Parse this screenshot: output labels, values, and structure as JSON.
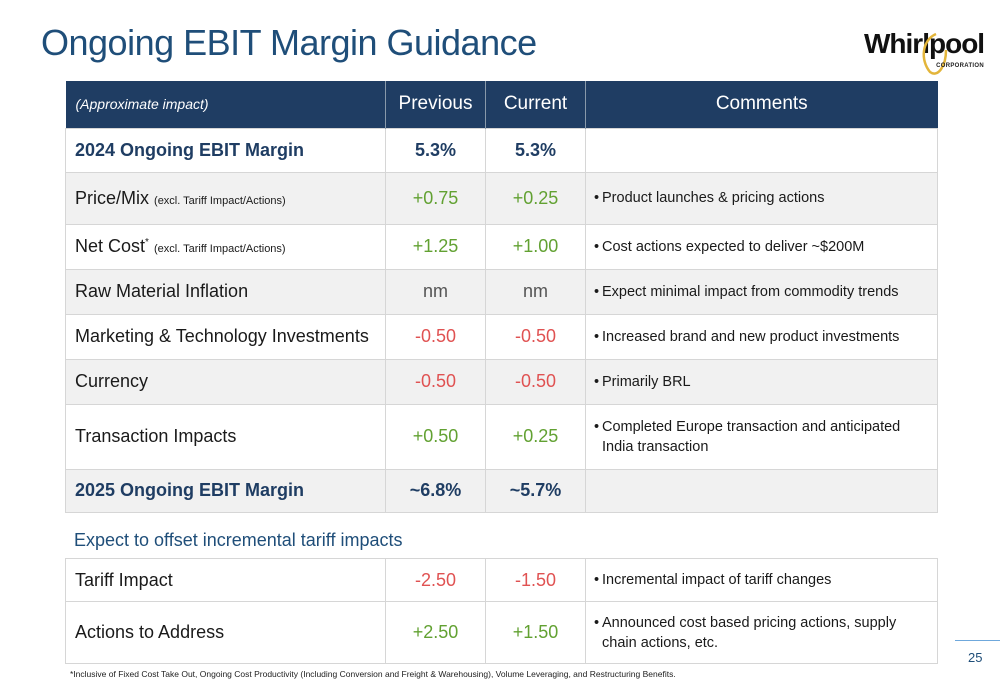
{
  "title": "Ongoing EBIT Margin Guidance",
  "logo": {
    "word": "Whirlpool",
    "sub": "CORPORATION"
  },
  "header": {
    "first": "(Approximate impact)",
    "previous": "Previous",
    "current": "Current",
    "comments": "Comments"
  },
  "rows": [
    {
      "label": "2024 Ongoing EBIT Margin",
      "note": "",
      "sup": "",
      "previous": "5.3%",
      "current": "5.3%",
      "comment": []
    },
    {
      "label": "Price/Mix",
      "note": "(excl. Tariff Impact/Actions)",
      "sup": "",
      "previous": "+0.75",
      "current": "+0.25",
      "comment": [
        "Product launches & pricing actions"
      ]
    },
    {
      "label": "Net Cost",
      "note": "(excl. Tariff Impact/Actions)",
      "sup": "*",
      "previous": "+1.25",
      "current": "+1.00",
      "comment": [
        "Cost actions expected to deliver ~$200M"
      ]
    },
    {
      "label": "Raw Material Inflation",
      "note": "",
      "sup": "",
      "previous": "nm",
      "current": "nm",
      "comment": [
        "Expect minimal impact from commodity trends"
      ]
    },
    {
      "label": "Marketing & Technology Investments",
      "note": "",
      "sup": "",
      "previous": "-0.50",
      "current": "-0.50",
      "comment": [
        "Increased brand and new product investments"
      ]
    },
    {
      "label": "Currency",
      "note": "",
      "sup": "",
      "previous": "-0.50",
      "current": "-0.50",
      "comment": [
        "Primarily BRL"
      ]
    },
    {
      "label": "Transaction Impacts",
      "note": "",
      "sup": "",
      "previous": "+0.50",
      "current": "+0.25",
      "comment": [
        "Completed Europe transaction and anticipated",
        "India transaction"
      ]
    },
    {
      "label": "2025 Ongoing EBIT Margin",
      "note": "",
      "sup": "",
      "previous": "~6.8%",
      "current": "~5.7%",
      "comment": []
    }
  ],
  "section_note": "Expect to offset incremental tariff impacts",
  "tariff_rows": [
    {
      "label": "Tariff Impact",
      "previous": "-2.50",
      "current": "-1.50",
      "comment": [
        "Incremental impact of tariff changes"
      ]
    },
    {
      "label": "Actions to Address",
      "previous": "+2.50",
      "current": "+1.50",
      "comment": [
        "Announced cost based pricing actions, supply",
        "chain actions, etc."
      ]
    }
  ],
  "footnote": "*Inclusive of Fixed Cost Take Out, Ongoing Cost Productivity (Including Conversion and Freight & Warehousing), Volume Leveraging, and Restructuring Benefits.",
  "page_number": "25",
  "colors": {
    "header_bg": "#1f3d63",
    "positive": "#62a132",
    "negative": "#e05252",
    "title": "#1f4e79"
  }
}
